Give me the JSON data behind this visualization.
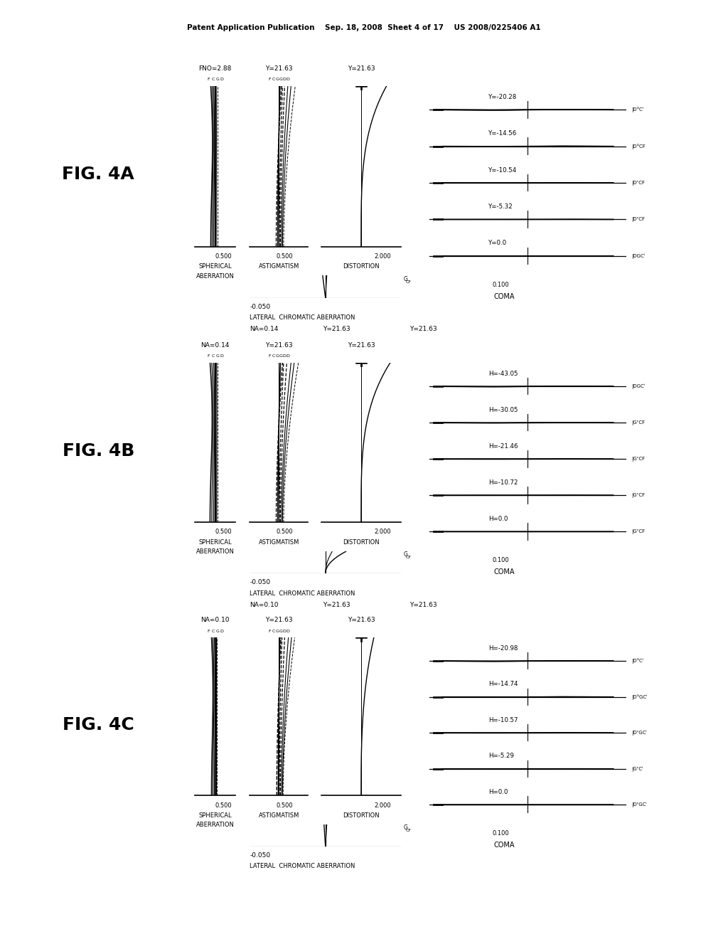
{
  "background": "#ffffff",
  "header": "Patent Application Publication    Sep. 18, 2008  Sheet 4 of 17    US 2008/0225406 A1",
  "figures": [
    {
      "label": "FIG. 4A",
      "sa_top": "FNO=2.88",
      "astig_top": "Y=21.63",
      "dist_top": "Y=21.63",
      "sa_scale": "0.500",
      "astig_scale": "0.500",
      "dist_scale": "2.000",
      "lat_scale": "-0.050",
      "lat_label": "LATERAL  CHROMATIC ABERRATION",
      "next_sa": "NA=0.14",
      "next_astig": "Y=21.63",
      "next_dist": "Y=21.63",
      "coma_scale": "0.100",
      "coma_rows": [
        {
          "label": "Y=-20.28",
          "amp": 0.035,
          "right_label": "DᴳCⁱ"
        },
        {
          "label": "Y=-14.56",
          "amp": 0.025,
          "right_label": "DᴳCF"
        },
        {
          "label": "Y=-10.54",
          "amp": 0.018,
          "right_label": "DᶜCF"
        },
        {
          "label": "Y=-5.32",
          "amp": 0.01,
          "right_label": "DᶜCF"
        },
        {
          "label": "Y=0.0",
          "amp": 0.003,
          "right_label": "DGCⁱ"
        }
      ]
    },
    {
      "label": "FIG. 4B",
      "sa_top": "NA=0.14",
      "astig_top": "Y=21.63",
      "dist_top": "Y=21.63",
      "sa_scale": "0.500",
      "astig_scale": "0.500",
      "dist_scale": "2.000",
      "lat_scale": "-0.050",
      "lat_label": "LATERAL  CHROMATIC ABERRATION",
      "next_sa": "NA=0.10",
      "next_astig": "Y=21.63",
      "next_dist": "Y=21.63",
      "coma_scale": "0.100",
      "coma_rows": [
        {
          "label": "H=-43.05",
          "amp": 0.03,
          "right_label": "DGCⁱ"
        },
        {
          "label": "H=-30.05",
          "amp": 0.022,
          "right_label": "GᶜCF"
        },
        {
          "label": "H=-21.46",
          "amp": 0.016,
          "right_label": "GᶜCF"
        },
        {
          "label": "H=-10.72",
          "amp": 0.01,
          "right_label": "GᶜCF"
        },
        {
          "label": "H=0.0",
          "amp": 0.003,
          "right_label": "GᶜCF"
        }
      ]
    },
    {
      "label": "FIG. 4C",
      "sa_top": "NA=0.10",
      "astig_top": "Y=21.63",
      "dist_top": "Y=21.63",
      "sa_scale": "0.500",
      "astig_scale": "0.500",
      "dist_scale": "2.000",
      "lat_scale": "-0.050",
      "lat_label": "LATERAL  CHROMATIC ABERRATION",
      "next_sa": null,
      "next_astig": null,
      "next_dist": null,
      "coma_scale": "0.100",
      "coma_rows": [
        {
          "label": "H=-20.98",
          "amp": 0.03,
          "right_label": "DᴳCⁱ"
        },
        {
          "label": "H=-14.74",
          "amp": 0.022,
          "right_label": "DᴳGCⁱ"
        },
        {
          "label": "H=-10.57",
          "amp": 0.016,
          "right_label": "DᶜGCⁱ"
        },
        {
          "label": "H=-5.29",
          "amp": 0.01,
          "right_label": "GᶜCⁱ"
        },
        {
          "label": "H=0.0",
          "amp": 0.003,
          "right_label": "DᶜGCⁱ"
        }
      ]
    }
  ]
}
